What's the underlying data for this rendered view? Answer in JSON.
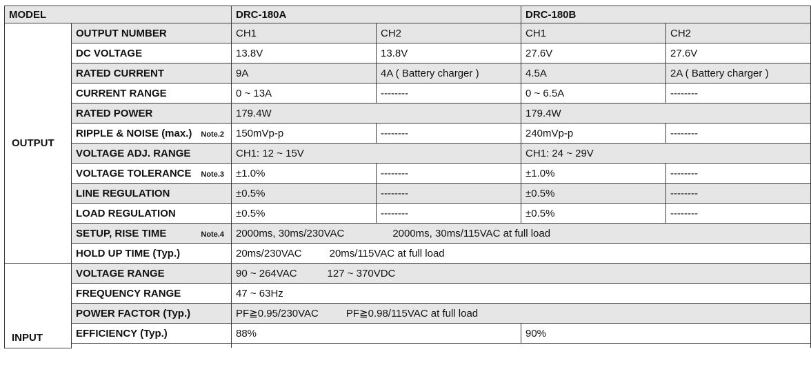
{
  "header": {
    "model_label": "MODEL",
    "model_a": "DRC-180A",
    "model_b": "DRC-180B"
  },
  "groups": {
    "output": "OUTPUT",
    "input": "INPUT"
  },
  "output": {
    "output_number": {
      "label": "OUTPUT NUMBER",
      "a1": "CH1",
      "a2": "CH2",
      "b1": "CH1",
      "b2": "CH2"
    },
    "dc_voltage": {
      "label": "DC VOLTAGE",
      "a1": "13.8V",
      "a2": "13.8V",
      "b1": "27.6V",
      "b2": "27.6V"
    },
    "rated_current": {
      "label": "RATED CURRENT",
      "a1": "9A",
      "a2": "4A ( Battery charger )",
      "b1": "4.5A",
      "b2": "2A ( Battery charger )"
    },
    "current_range": {
      "label": "CURRENT RANGE",
      "a1": "0 ~ 13A",
      "a2": "--------",
      "b1": "0 ~ 6.5A",
      "b2": "--------"
    },
    "rated_power": {
      "label": "RATED POWER",
      "a": "179.4W",
      "b": "179.4W"
    },
    "ripple_noise": {
      "label": "RIPPLE & NOISE (max.)",
      "note": "Note.2",
      "a1": "150mVp-p",
      "a2": "--------",
      "b1": "240mVp-p",
      "b2": "--------"
    },
    "voltage_adj": {
      "label": "VOLTAGE ADJ. RANGE",
      "a": "CH1: 12 ~ 15V",
      "b": "CH1: 24 ~ 29V"
    },
    "voltage_tol": {
      "label": "VOLTAGE TOLERANCE",
      "note": "Note.3",
      "a1": "±1.0%",
      "a2": "--------",
      "b1": "±1.0%",
      "b2": "--------"
    },
    "line_reg": {
      "label": "LINE REGULATION",
      "a1": "±0.5%",
      "a2": "--------",
      "b1": "±0.5%",
      "b2": "--------"
    },
    "load_reg": {
      "label": "LOAD REGULATION",
      "a1": "±0.5%",
      "a2": "--------",
      "b1": "±0.5%",
      "b2": "--------"
    },
    "setup_rise": {
      "label": "SETUP, RISE TIME",
      "note": "Note.4",
      "v1": "2000ms, 30ms/230VAC",
      "v2": "2000ms, 30ms/115VAC at full load"
    },
    "hold_up": {
      "label": "HOLD UP TIME (Typ.)",
      "v1": "20ms/230VAC",
      "v2": "20ms/115VAC at full load"
    }
  },
  "input": {
    "voltage_range": {
      "label": "VOLTAGE RANGE",
      "v1": "90 ~ 264VAC",
      "v2": "127 ~ 370VDC"
    },
    "frequency_range": {
      "label": "FREQUENCY RANGE",
      "v1": "47 ~ 63Hz"
    },
    "power_factor": {
      "label": "POWER FACTOR (Typ.)",
      "v1": "PF≧0.95/230VAC",
      "v2": "PF≧0.98/115VAC at full load"
    },
    "efficiency": {
      "label": "EFFICIENCY (Typ.)",
      "a": "88%",
      "b": "90%"
    }
  }
}
